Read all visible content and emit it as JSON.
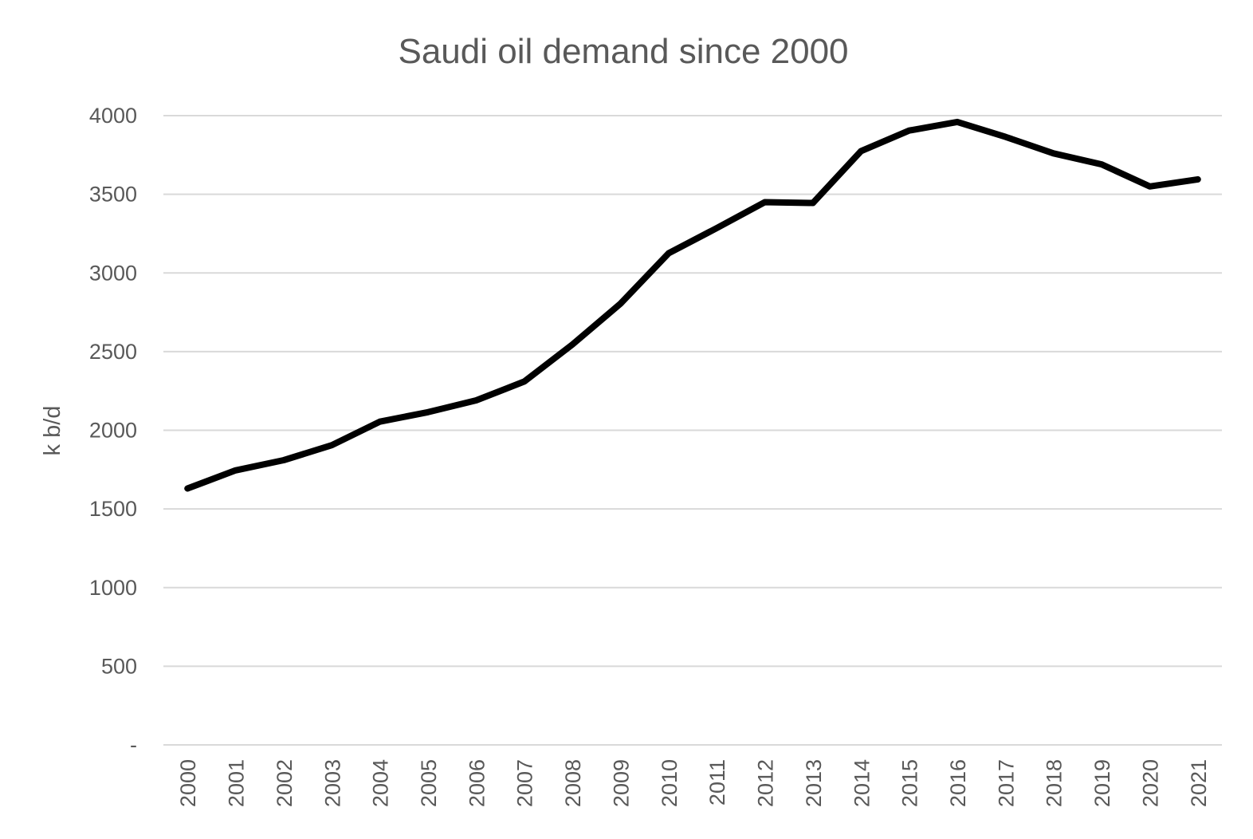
{
  "chart_data": {
    "type": "line",
    "title": "Saudi oil demand since 2000",
    "xlabel": "",
    "ylabel": "k b/d",
    "ylim": [
      0,
      4000
    ],
    "yticks": [
      {
        "value": 0,
        "label": "-"
      },
      {
        "value": 500,
        "label": "500"
      },
      {
        "value": 1000,
        "label": "1000"
      },
      {
        "value": 1500,
        "label": "1500"
      },
      {
        "value": 2000,
        "label": "2000"
      },
      {
        "value": 2500,
        "label": "2500"
      },
      {
        "value": 3000,
        "label": "3000"
      },
      {
        "value": 3500,
        "label": "3500"
      },
      {
        "value": 4000,
        "label": "4000"
      }
    ],
    "categories": [
      "2000",
      "2001",
      "2002",
      "2003",
      "2004",
      "2005",
      "2006",
      "2007",
      "2008",
      "2009",
      "2010",
      "2011",
      "2012",
      "2013",
      "2014",
      "2015",
      "2016",
      "2017",
      "2018",
      "2019",
      "2020",
      "2021"
    ],
    "series": [
      {
        "color": "#000000",
        "values": [
          1630,
          1745,
          1810,
          1905,
          2055,
          2115,
          2190,
          2310,
          2545,
          2805,
          3125,
          3285,
          3450,
          3445,
          3775,
          3905,
          3960,
          3865,
          3760,
          3690,
          3550,
          3595
        ]
      }
    ],
    "grid": true,
    "legend": "none"
  }
}
